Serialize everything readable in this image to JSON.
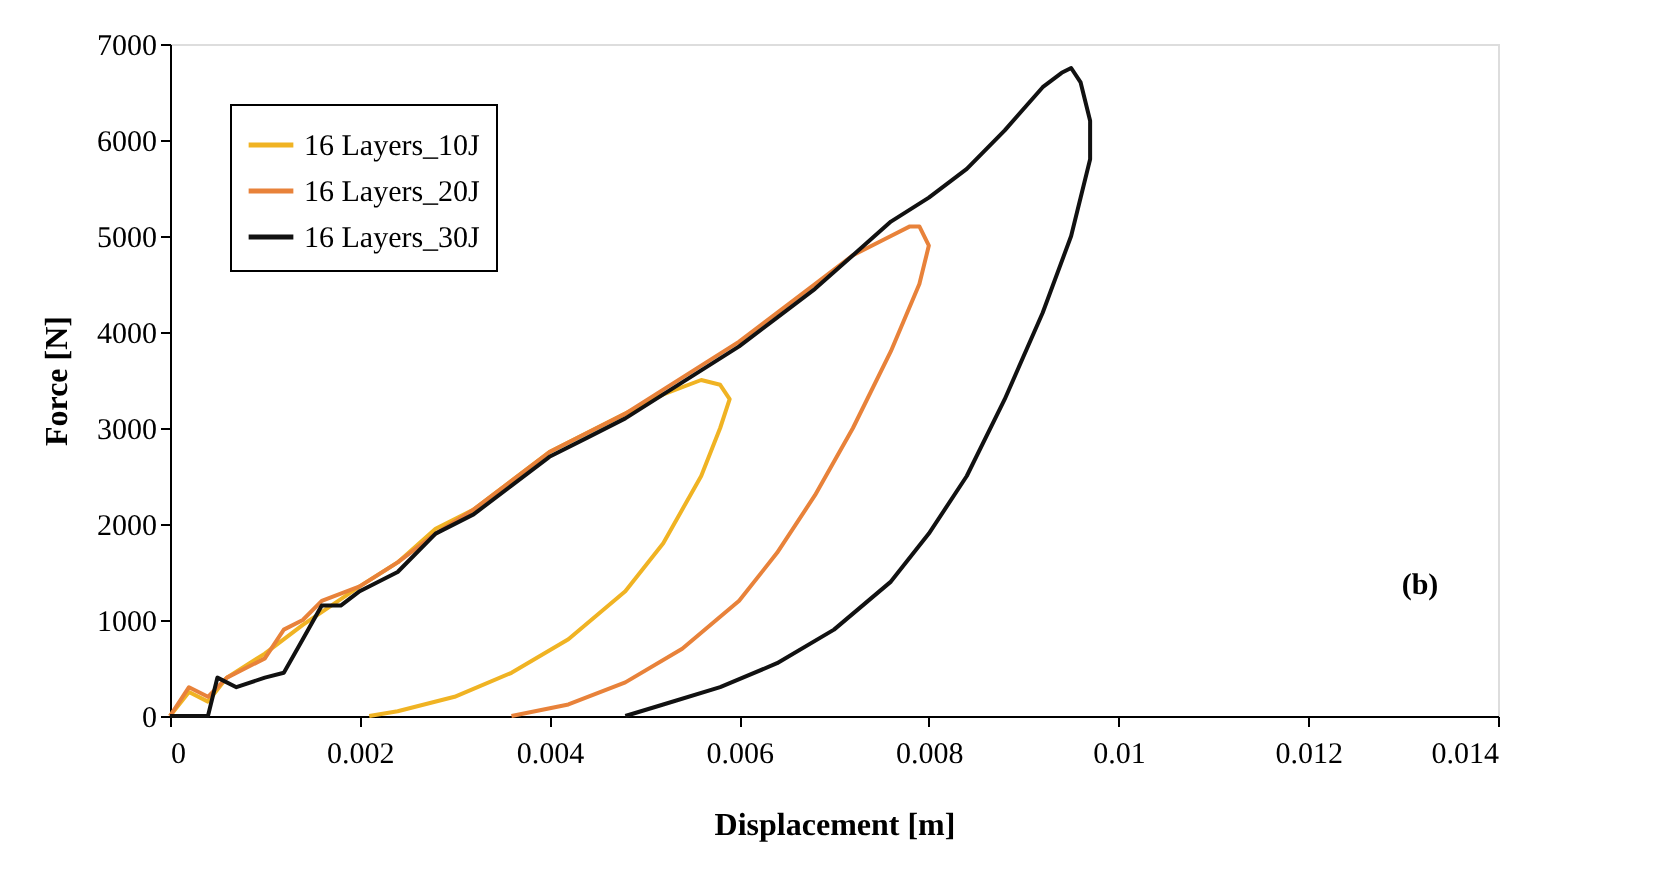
{
  "chart_data": {
    "type": "line",
    "xlabel": "Displacement [m]",
    "ylabel": "Force [N]",
    "xlim": [
      0,
      0.014
    ],
    "xticks": [
      0,
      0.002,
      0.004,
      0.006,
      0.008,
      0.01,
      0.012,
      0.014
    ],
    "ylim": [
      0,
      7000
    ],
    "yticks": [
      0,
      1000,
      2000,
      3000,
      4000,
      5000,
      6000,
      7000
    ],
    "grid": false,
    "legend": "top left",
    "marker": "none",
    "line_style": "solid",
    "annotations": [
      "(b)"
    ],
    "series": [
      {
        "name": "16 Layers_10J",
        "color": "#f0b323",
        "x": [
          0,
          0.0002,
          0.0004,
          0.0006,
          0.001,
          0.0014,
          0.002,
          0.0024,
          0.0028,
          0.0032,
          0.0036,
          0.004,
          0.0044,
          0.0048,
          0.0052,
          0.0056,
          0.0058,
          0.0059,
          0.0058,
          0.0056,
          0.0052,
          0.0048,
          0.0042,
          0.0036,
          0.003,
          0.0024,
          0.0021
        ],
        "values": [
          0,
          250,
          150,
          400,
          650,
          950,
          1350,
          1600,
          1950,
          2150,
          2450,
          2750,
          2950,
          3150,
          3350,
          3500,
          3450,
          3300,
          3000,
          2500,
          1800,
          1300,
          800,
          450,
          200,
          50,
          0
        ]
      },
      {
        "name": "16 Layers_20J",
        "color": "#e8823a",
        "x": [
          0,
          0.0002,
          0.0004,
          0.0006,
          0.0008,
          0.001,
          0.0012,
          0.0014,
          0.0016,
          0.002,
          0.0024,
          0.0028,
          0.0032,
          0.0036,
          0.004,
          0.0044,
          0.0048,
          0.0052,
          0.0056,
          0.006,
          0.0064,
          0.0068,
          0.0072,
          0.0076,
          0.0078,
          0.0079,
          0.008,
          0.0079,
          0.0076,
          0.0072,
          0.0068,
          0.0064,
          0.006,
          0.0054,
          0.0048,
          0.0042,
          0.0036
        ],
        "values": [
          0,
          300,
          200,
          400,
          500,
          600,
          900,
          1000,
          1200,
          1350,
          1600,
          1900,
          2150,
          2450,
          2750,
          2950,
          3150,
          3400,
          3650,
          3900,
          4200,
          4500,
          4800,
          5000,
          5100,
          5100,
          4900,
          4500,
          3800,
          3000,
          2300,
          1700,
          1200,
          700,
          350,
          120,
          0
        ]
      },
      {
        "name": "16 Layers_30J",
        "color": "#111111",
        "x": [
          0,
          0.0004,
          0.0005,
          0.0007,
          0.001,
          0.0012,
          0.0014,
          0.0016,
          0.0018,
          0.002,
          0.0024,
          0.0028,
          0.0032,
          0.0036,
          0.004,
          0.0044,
          0.0048,
          0.0052,
          0.0056,
          0.006,
          0.0064,
          0.0068,
          0.0072,
          0.0076,
          0.008,
          0.0084,
          0.0088,
          0.0092,
          0.0094,
          0.0095,
          0.0096,
          0.0097,
          0.0097,
          0.0095,
          0.0092,
          0.0088,
          0.0084,
          0.008,
          0.0076,
          0.007,
          0.0064,
          0.0058,
          0.0052,
          0.0048
        ],
        "values": [
          0,
          0,
          400,
          300,
          400,
          450,
          800,
          1150,
          1150,
          1300,
          1500,
          1900,
          2100,
          2400,
          2700,
          2900,
          3100,
          3350,
          3600,
          3850,
          4150,
          4450,
          4800,
          5150,
          5400,
          5700,
          6100,
          6550,
          6700,
          6750,
          6600,
          6200,
          5800,
          5000,
          4200,
          3300,
          2500,
          1900,
          1400,
          900,
          550,
          300,
          120,
          0
        ]
      }
    ]
  }
}
